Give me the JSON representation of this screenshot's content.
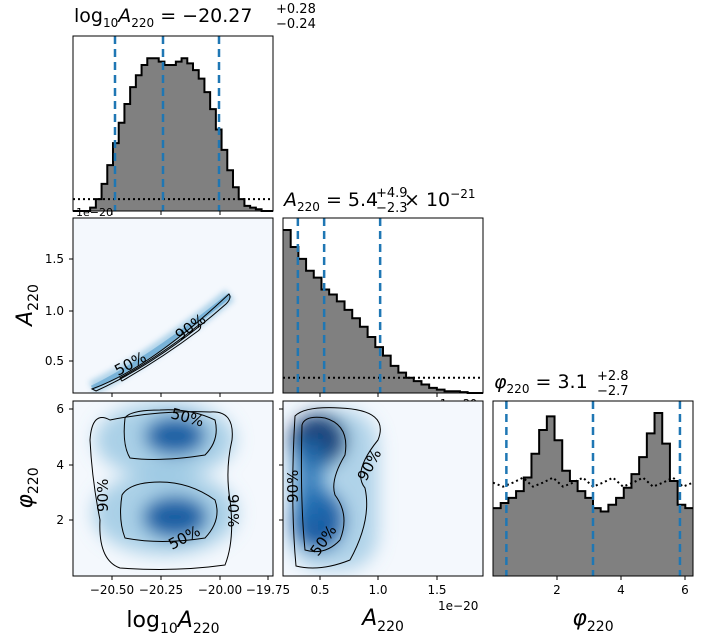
{
  "chart_data": {
    "type": "corner",
    "parameters": [
      "log10A220",
      "A220",
      "phi220"
    ],
    "titles": {
      "log10A220": {
        "label": "log10A220",
        "value": "−20.27",
        "plus": "+0.28",
        "minus": "−0.24"
      },
      "A220": {
        "label": "A220",
        "value": "5.4",
        "plus": "+4.9",
        "minus": "−2.3",
        "scale": "× 10−21"
      },
      "phi220": {
        "label": "φ220",
        "value": "3.1",
        "plus": "+2.8",
        "minus": "−2.7"
      }
    },
    "axis_labels": {
      "x1": "log10A220",
      "x2": "A220",
      "x3": "φ220",
      "y2": "A220",
      "y3": "φ220"
    },
    "offset_texts": {
      "hist1": "1e−20",
      "hist2": "1e−20",
      "bottom_mid": "1e−20"
    },
    "ticks": {
      "log10A220": [
        "−20.50",
        "−20.25",
        "−20.00",
        "−19.75"
      ],
      "A220_x": [
        "0.5",
        "1.0",
        "1.5"
      ],
      "A220_y": [
        "1.5",
        "1.0",
        "0.5"
      ],
      "phi220_x": [
        "2",
        "4",
        "6"
      ],
      "phi220_y": [
        "6",
        "4",
        "2"
      ]
    },
    "hist_log10A220": {
      "range": [
        -20.72,
        -19.72
      ],
      "quantiles": [
        -20.51,
        -20.27,
        -19.99
      ],
      "prior_level": 0.07,
      "values": [
        0,
        0,
        0,
        0.02,
        0.07,
        0.16,
        0.27,
        0.4,
        0.52,
        0.63,
        0.73,
        0.8,
        0.86,
        0.9,
        0.9,
        0.88,
        0.86,
        0.86,
        0.88,
        0.9,
        0.87,
        0.83,
        0.78,
        0.7,
        0.6,
        0.48,
        0.36,
        0.24,
        0.14,
        0.07,
        0.03,
        0.02,
        0.01,
        0,
        0
      ]
    },
    "hist_A220": {
      "range": [
        0.18,
        1.93
      ],
      "quantiles": [
        0.31,
        0.54,
        1.03
      ],
      "prior_level": 0.09,
      "values": [
        0.96,
        0.86,
        0.79,
        0.72,
        0.68,
        0.61,
        0.58,
        0.54,
        0.49,
        0.44,
        0.39,
        0.33,
        0.27,
        0.22,
        0.16,
        0.12,
        0.09,
        0.07,
        0.05,
        0.03,
        0.02,
        0.01,
        0.01,
        0.005,
        0,
        0
      ]
    },
    "hist_phi220": {
      "range": [
        0,
        6.28
      ],
      "quantiles": [
        0.42,
        3.14,
        5.87
      ],
      "prior_level": 0.55,
      "values": [
        0.4,
        0.43,
        0.46,
        0.5,
        0.58,
        0.72,
        0.86,
        0.94,
        0.8,
        0.62,
        0.56,
        0.5,
        0.46,
        0.4,
        0.38,
        0.42,
        0.46,
        0.52,
        0.6,
        0.7,
        0.84,
        0.96,
        0.78,
        0.56,
        0.42,
        0.4
      ]
    },
    "contour_labels": {
      "inner": "50%",
      "outer": "90%"
    },
    "colors": {
      "hist_fill": "#808080",
      "quantile_line": "#1f77b4",
      "density": "#08306b"
    }
  }
}
